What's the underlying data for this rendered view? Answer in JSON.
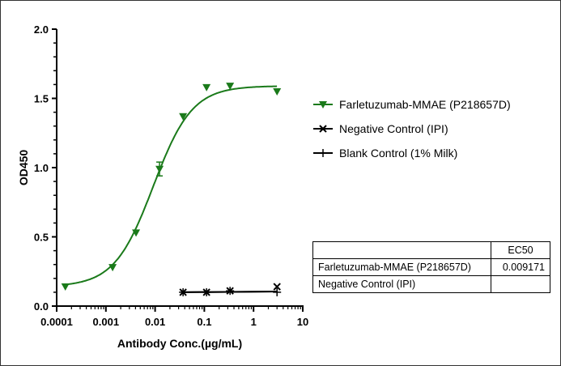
{
  "chart_data": {
    "type": "scatter",
    "xlabel": "Antibody Conc.(µg/mL)",
    "ylabel": "OD450",
    "xscale": "log",
    "xlim": [
      0.0001,
      10
    ],
    "ylim": [
      0,
      2.0
    ],
    "xticks": [
      "0.0001",
      "0.001",
      "0.01",
      "0.1",
      "1",
      "10"
    ],
    "yticks": [
      "0.0",
      "0.5",
      "1.0",
      "1.5",
      "2.0"
    ],
    "legend_position": "right",
    "grid": false,
    "series": [
      {
        "name": "Farletuzumab-MMAE (P218657D)",
        "color": "#1a7a1a",
        "marker": "triangle-down",
        "x": [
          0.00015,
          0.00137,
          0.0041,
          0.0123,
          0.037,
          0.111,
          0.333,
          3
        ],
        "y": [
          0.14,
          0.28,
          0.53,
          0.99,
          1.37,
          1.58,
          1.59,
          1.55
        ],
        "error": [
          0.02,
          0.01,
          0.01,
          0.05,
          0.01,
          0.01,
          0.01,
          0.01
        ],
        "fit": {
          "model": "4PL",
          "bottom": 0.14,
          "top": 1.59,
          "ec50": 0.009171,
          "hill": 1.1
        }
      },
      {
        "name": "Negative Control (IPI)",
        "color": "#000000",
        "marker": "x",
        "x": [
          0.037,
          0.111,
          0.333,
          3
        ],
        "y": [
          0.1,
          0.1,
          0.11,
          0.14
        ]
      },
      {
        "name": "Blank Control (1% Milk)",
        "color": "#000000",
        "marker": "plus",
        "x": [
          0.037,
          0.111,
          0.333,
          3
        ],
        "y": [
          0.1,
          0.1,
          0.11,
          0.1
        ]
      }
    ],
    "table": {
      "header": [
        "",
        "EC50"
      ],
      "rows": [
        [
          "Farletuzumab-MMAE (P218657D)",
          "0.009171"
        ],
        [
          "Negative Control (IPI)",
          ""
        ]
      ]
    }
  }
}
